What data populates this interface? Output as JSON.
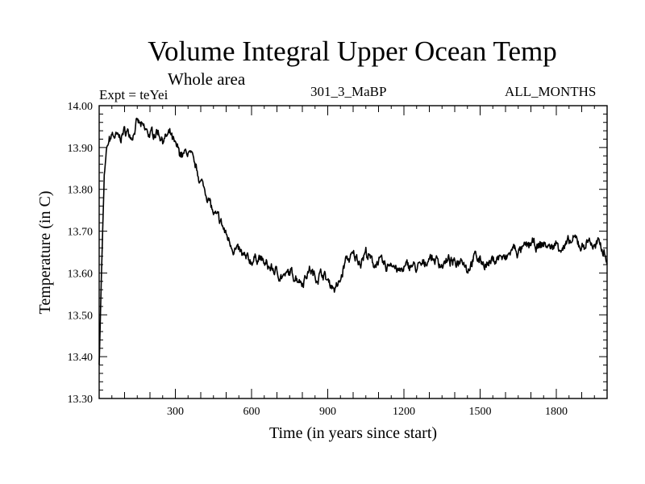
{
  "chart_data": {
    "type": "line",
    "title": "Volume Integral Upper Ocean Temp",
    "region": "Whole area",
    "experiment": "Expt = teYei",
    "run_id": "301_3_MaBP",
    "season": "ALL_MONTHS",
    "xlabel": "Time (in years since start)",
    "ylabel": "Temperature (in C)",
    "xlim": [
      0,
      2000
    ],
    "ylim": [
      13.3,
      14.0
    ],
    "xticks": [
      "300",
      "600",
      "900",
      "1200",
      "1500",
      "1800"
    ],
    "yticks": [
      "13.30",
      "13.40",
      "13.50",
      "13.60",
      "13.70",
      "13.80",
      "13.90",
      "14.00"
    ],
    "line_color": "#000000",
    "series": [
      {
        "name": "Volume Integral Upper Ocean Temp",
        "x": [
          0,
          10,
          20,
          30,
          50,
          80,
          100,
          130,
          150,
          180,
          200,
          230,
          250,
          280,
          300,
          330,
          350,
          380,
          400,
          430,
          450,
          480,
          500,
          530,
          550,
          580,
          600,
          630,
          650,
          680,
          700,
          730,
          750,
          780,
          800,
          830,
          850,
          880,
          900,
          920,
          930,
          950,
          970,
          1000,
          1030,
          1050,
          1080,
          1100,
          1130,
          1150,
          1180,
          1200,
          1230,
          1250,
          1280,
          1300,
          1330,
          1350,
          1380,
          1400,
          1430,
          1450,
          1480,
          1500,
          1530,
          1550,
          1580,
          1600,
          1630,
          1650,
          1680,
          1700,
          1730,
          1750,
          1780,
          1800,
          1830,
          1850,
          1880,
          1900,
          1930,
          1950,
          1970,
          1990,
          2000
        ],
        "values": [
          13.38,
          13.62,
          13.83,
          13.9,
          13.93,
          13.92,
          13.94,
          13.93,
          13.96,
          13.94,
          13.93,
          13.94,
          13.92,
          13.93,
          13.9,
          13.88,
          13.89,
          13.85,
          13.82,
          13.78,
          13.74,
          13.72,
          13.69,
          13.66,
          13.65,
          13.63,
          13.63,
          13.64,
          13.62,
          13.61,
          13.6,
          13.59,
          13.6,
          13.59,
          13.58,
          13.61,
          13.59,
          13.6,
          13.58,
          13.57,
          13.56,
          13.58,
          13.63,
          13.64,
          13.63,
          13.65,
          13.62,
          13.63,
          13.61,
          13.63,
          13.6,
          13.61,
          13.62,
          13.61,
          13.62,
          13.64,
          13.63,
          13.62,
          13.63,
          13.62,
          13.64,
          13.61,
          13.64,
          13.63,
          13.62,
          13.63,
          13.64,
          13.63,
          13.66,
          13.65,
          13.66,
          13.67,
          13.66,
          13.67,
          13.66,
          13.67,
          13.66,
          13.67,
          13.68,
          13.66,
          13.68,
          13.66,
          13.67,
          13.65,
          13.63
        ]
      }
    ]
  }
}
